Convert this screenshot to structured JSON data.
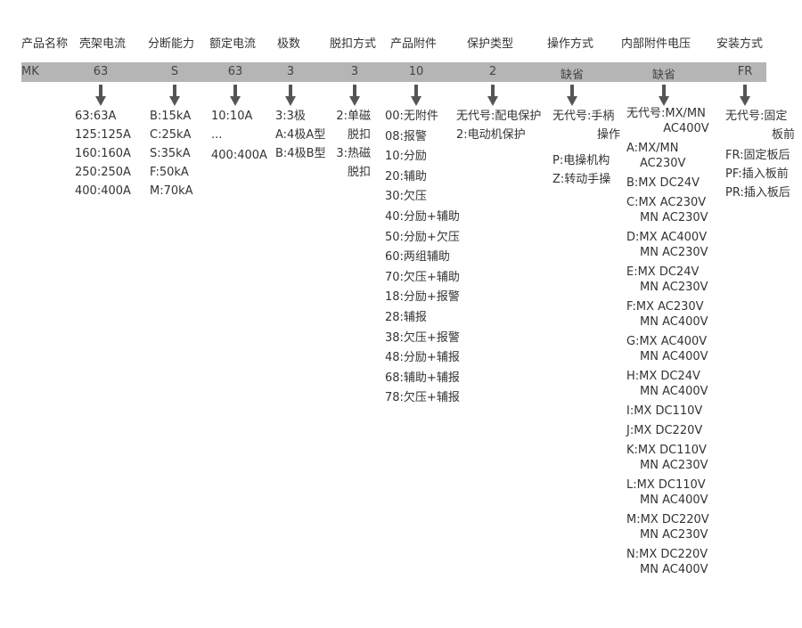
{
  "columns": [
    {
      "header": "产品名称",
      "value": "MK",
      "options": []
    },
    {
      "header": "壳架电流",
      "value": "63",
      "options": [
        "63:63A",
        "125:125A",
        "160:160A",
        "250:250A",
        "400:400A"
      ]
    },
    {
      "header": "分断能力",
      "value": "S",
      "options": [
        "B:15kA",
        "C:25kA",
        "S:35kA",
        "F:50kA",
        "M:70kA"
      ]
    },
    {
      "header": "额定电流",
      "value": "63",
      "options": [
        "10:10A",
        "...",
        "400:400A"
      ]
    },
    {
      "header": "极数",
      "value": "3",
      "options": [
        "3:3极",
        "A:4极A型",
        "B:4极B型"
      ]
    },
    {
      "header": "脱扣方式",
      "value": "3",
      "options": [
        "2:单磁",
        "脱扣",
        "3:热磁",
        "脱扣"
      ]
    },
    {
      "header": "产品附件",
      "value": "10",
      "options": [
        "00:无附件",
        "08:报警",
        "10:分励",
        "20:辅助",
        "30:欠压",
        "40:分励+辅助",
        "50:分励+欠压",
        "60:两组辅助",
        "70:欠压+辅助",
        "18:分励+报警",
        "28:辅报",
        "38:欠压+报警",
        "48:分励+辅报",
        "68:辅助+辅报",
        "78:欠压+辅报"
      ]
    },
    {
      "header": "保护类型",
      "value": "2",
      "options": [
        "无代号:配电保护",
        "2:电动机保护"
      ]
    },
    {
      "header": "操作方式",
      "value": "缺省",
      "options": [
        "无代号:手柄",
        "操作",
        "P:电操机构",
        "Z:转动手操"
      ]
    },
    {
      "header": "内部附件电压",
      "value": "缺省",
      "options": [
        [
          "无代号:MX/MN",
          "AC400V"
        ],
        [
          "A:MX/MN",
          "AC230V"
        ],
        [
          "B:MX DC24V",
          ""
        ],
        [
          "C:MX AC230V",
          "MN AC230V"
        ],
        [
          "D:MX AC400V",
          "MN AC230V"
        ],
        [
          "E:MX DC24V",
          "MN AC230V"
        ],
        [
          "F:MX AC230V",
          "MN AC400V"
        ],
        [
          "G:MX AC400V",
          "MN AC400V"
        ],
        [
          "H:MX DC24V",
          "MN AC400V"
        ],
        [
          "I:MX DC110V",
          ""
        ],
        [
          "J:MX DC220V",
          ""
        ],
        [
          "K:MX DC110V",
          "MN AC230V"
        ],
        [
          "L:MX DC110V",
          "MN AC400V"
        ],
        [
          "M:MX DC220V",
          "MN AC230V"
        ],
        [
          "N:MX DC220V",
          "MN AC400V"
        ]
      ]
    },
    {
      "header": "安装方式",
      "value": "FR",
      "options": [
        "无代号:固定",
        "板前",
        "FR:固定板后",
        "PF:插入板前",
        "PR:插入板后"
      ]
    }
  ],
  "colors": {
    "bar": "#b5b5b5",
    "arrow": "#555555",
    "text": "#333333"
  }
}
